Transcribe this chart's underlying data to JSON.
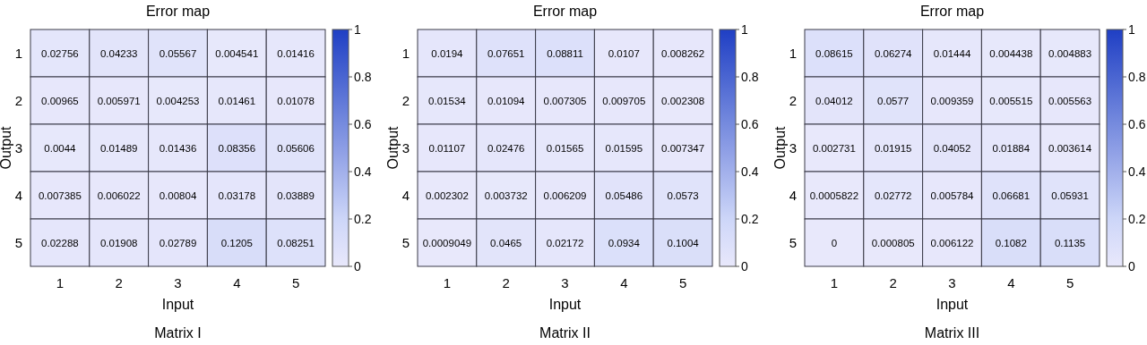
{
  "chart_data": [
    {
      "type": "heatmap",
      "title": "Error map",
      "xlabel": "Input",
      "ylabel": "Output",
      "annotations": [
        "Matrix I"
      ],
      "categories": [
        "1",
        "2",
        "3",
        "4",
        "5"
      ],
      "y_categories": [
        "1",
        "2",
        "3",
        "4",
        "5"
      ],
      "cells": [
        [
          0.02756,
          0.04233,
          0.05567,
          0.004541,
          0.01416
        ],
        [
          0.00965,
          0.005971,
          0.004253,
          0.01461,
          0.01078
        ],
        [
          0.0044,
          0.01489,
          0.01436,
          0.08356,
          0.05606
        ],
        [
          0.007385,
          0.006022,
          0.00804,
          0.03178,
          0.03889
        ],
        [
          0.02288,
          0.01908,
          0.02789,
          0.1205,
          0.08251
        ]
      ],
      "data_labels": true,
      "clim": [
        0,
        1
      ],
      "cticks": [
        0,
        0.2,
        0.4,
        0.6,
        0.8,
        1
      ]
    },
    {
      "type": "heatmap",
      "title": "Error map",
      "xlabel": "Input",
      "ylabel": "Output",
      "annotations": [
        "Matrix II"
      ],
      "categories": [
        "1",
        "2",
        "3",
        "4",
        "5"
      ],
      "y_categories": [
        "1",
        "2",
        "3",
        "4",
        "5"
      ],
      "cells": [
        [
          0.0194,
          0.07651,
          0.08811,
          0.0107,
          0.008262
        ],
        [
          0.01534,
          0.01094,
          0.007305,
          0.009705,
          0.002308
        ],
        [
          0.01107,
          0.02476,
          0.01565,
          0.01595,
          0.007347
        ],
        [
          0.002302,
          0.003732,
          0.006209,
          0.05486,
          0.0573
        ],
        [
          0.0009049,
          0.0465,
          0.02172,
          0.0934,
          0.1004
        ]
      ],
      "data_labels": true,
      "clim": [
        0,
        1
      ],
      "cticks": [
        0,
        0.2,
        0.4,
        0.6,
        0.8,
        1
      ]
    },
    {
      "type": "heatmap",
      "title": "Error map",
      "xlabel": "Input",
      "ylabel": "Output",
      "annotations": [
        "Matrix III"
      ],
      "categories": [
        "1",
        "2",
        "3",
        "4",
        "5"
      ],
      "y_categories": [
        "1",
        "2",
        "3",
        "4",
        "5"
      ],
      "cells": [
        [
          0.08615,
          0.06274,
          0.01444,
          0.004438,
          0.004883
        ],
        [
          0.04012,
          0.0577,
          0.009359,
          0.005515,
          0.005563
        ],
        [
          0.002731,
          0.01915,
          0.04052,
          0.01884,
          0.003614
        ],
        [
          0.0005822,
          0.02772,
          0.005784,
          0.06681,
          0.05931
        ],
        [
          0,
          0.000805,
          0.006122,
          0.1082,
          0.1135
        ]
      ],
      "data_labels": true,
      "clim": [
        0,
        1
      ],
      "cticks": [
        0,
        0.2,
        0.4,
        0.6,
        0.8,
        1
      ]
    }
  ]
}
